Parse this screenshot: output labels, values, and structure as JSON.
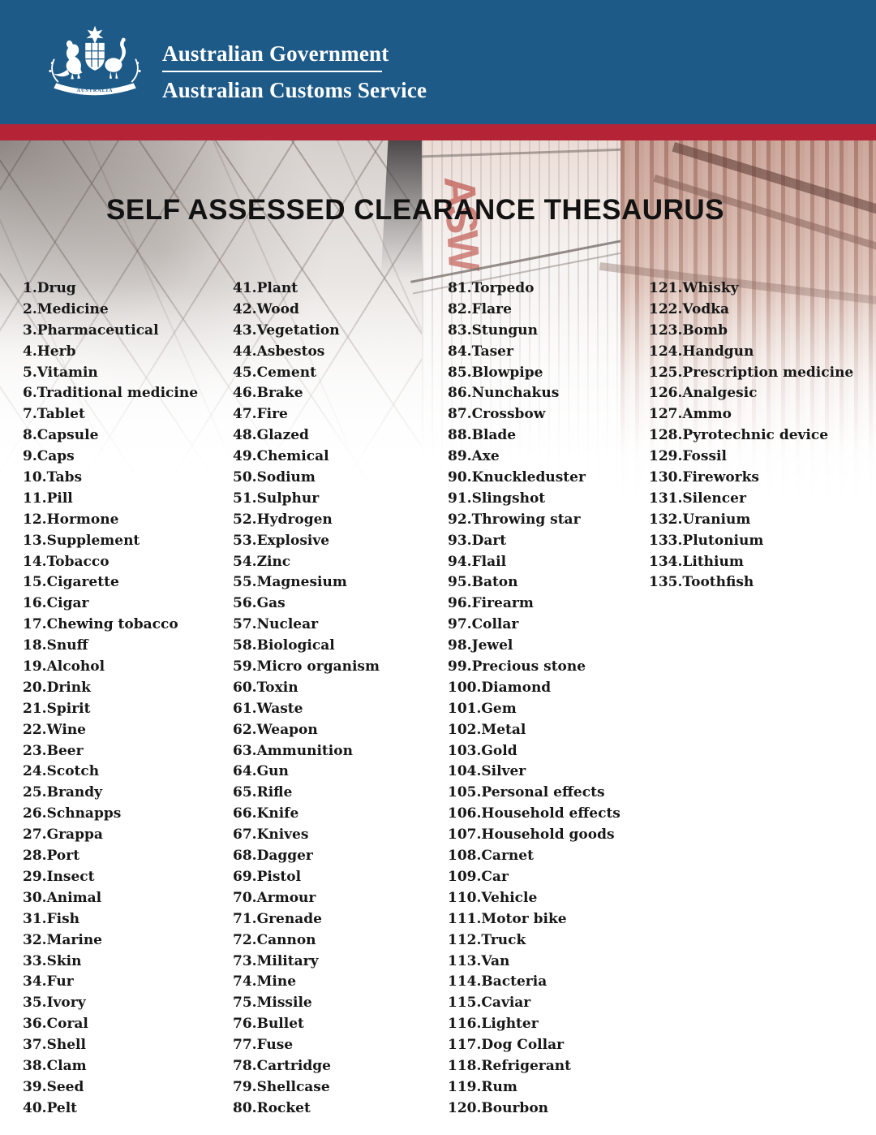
{
  "header": {
    "agency_line1": "Australian Government",
    "agency_line2": "Australian Customs Service",
    "crest_banner": "AUSTRALIA",
    "colors": {
      "banner_blue": "#1d5a88",
      "stripe_red": "#b52337"
    }
  },
  "hero": {
    "container_letters": "ASW"
  },
  "title": "SELF ASSESSED CLEARANCE THESAURUS",
  "list": {
    "columns": [
      {
        "items": [
          "1.Drug",
          "2.Medicine",
          "3.Pharmaceutical",
          "4.Herb",
          "5.Vitamin",
          "6.Traditional medicine",
          "7.Tablet",
          "8.Capsule",
          "9.Caps",
          "10.Tabs",
          "11.Pill",
          "12.Hormone",
          "13.Supplement",
          "14.Tobacco",
          "15.Cigarette",
          "16.Cigar",
          "17.Chewing tobacco",
          "18.Snuff",
          "19.Alcohol",
          "20.Drink",
          "21.Spirit",
          "22.Wine",
          "23.Beer",
          "24.Scotch",
          "25.Brandy",
          "26.Schnapps",
          "27.Grappa",
          "28.Port",
          "29.Insect",
          "30.Animal",
          "31.Fish",
          "32.Marine",
          "33.Skin",
          "34.Fur",
          "35.Ivory",
          "36.Coral",
          "37.Shell",
          "38.Clam",
          "39.Seed",
          "40.Pelt"
        ]
      },
      {
        "items": [
          "41.Plant",
          "42.Wood",
          "43.Vegetation",
          "44.Asbestos",
          "45.Cement",
          "46.Brake",
          "47.Fire",
          "48.Glazed",
          "49.Chemical",
          "50.Sodium",
          "51.Sulphur",
          "52.Hydrogen",
          "53.Explosive",
          "54.Zinc",
          "55.Magnesium",
          "56.Gas",
          "57.Nuclear",
          "58.Biological",
          "59.Micro organism",
          "60.Toxin",
          "61.Waste",
          "62.Weapon",
          "63.Ammunition",
          "64.Gun",
          "65.Rifle",
          "66.Knife",
          "67.Knives",
          "68.Dagger",
          "69.Pistol",
          "70.Armour",
          "71.Grenade",
          "72.Cannon",
          "73.Military",
          "74.Mine",
          "75.Missile",
          "76.Bullet",
          "77.Fuse",
          "78.Cartridge",
          "79.Shellcase",
          "80.Rocket"
        ]
      },
      {
        "items": [
          "81.Torpedo",
          "82.Flare",
          "83.Stungun",
          "84.Taser",
          "85.Blowpipe",
          "86.Nunchakus",
          "87.Crossbow",
          "88.Blade",
          "89.Axe",
          "90.Knuckleduster",
          "91.Slingshot",
          "92.Throwing star",
          "93.Dart",
          "94.Flail",
          "95.Baton",
          "96.Firearm",
          "97.Collar",
          "98.Jewel",
          "99.Precious stone",
          "100.Diamond",
          "101.Gem",
          "102.Metal",
          "103.Gold",
          "104.Silver",
          "105.Personal effects",
          "106.Household effects",
          "107.Household goods",
          "108.Carnet",
          "109.Car",
          "110.Vehicle",
          "111.Motor bike",
          "112.Truck",
          "113.Van",
          "114.Bacteria",
          "115.Caviar",
          "116.Lighter",
          "117.Dog Collar",
          "118.Refrigerant",
          "119.Rum",
          "120.Bourbon"
        ]
      },
      {
        "items": [
          "121.Whisky",
          "122.Vodka",
          "123.Bomb",
          "124.Handgun",
          "125.Prescription medicine",
          "126.Analgesic",
          "127.Ammo",
          "128.Pyrotechnic device",
          "129.Fossil",
          "130.Fireworks",
          "131.Silencer",
          "132.Uranium",
          "133.Plutonium",
          "134.Lithium",
          "135.Toothfish"
        ]
      }
    ]
  }
}
